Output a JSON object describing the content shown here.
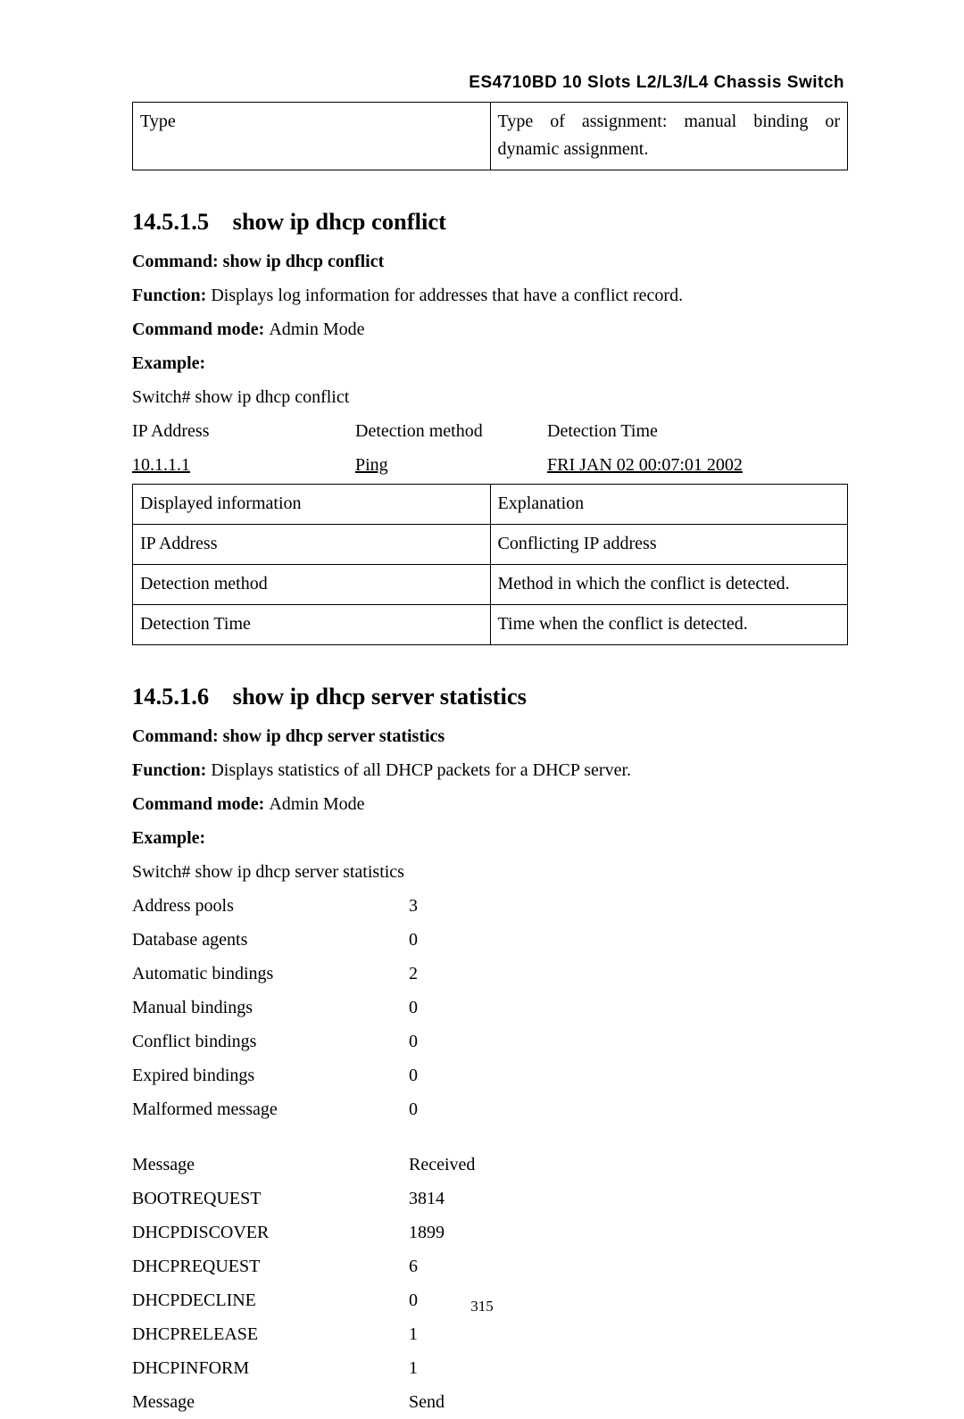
{
  "header": {
    "title": "ES4710BD 10 Slots L2/L3/L4 Chassis Switch"
  },
  "top_table": {
    "col_widths": [
      "50%",
      "50%"
    ],
    "row": {
      "left": "Type",
      "right": "Type of assignment: manual binding or dynamic assignment."
    }
  },
  "section1": {
    "number": "14.5.1.5",
    "title": "show ip dhcp conflict",
    "command_label": "Command: ",
    "command_text": "show ip dhcp conflict",
    "function_label": "Function: ",
    "function_text": "Displays log information for addresses that have a conflict record.",
    "mode_label": "Command mode: ",
    "mode_text": "Admin Mode",
    "example_label": "Example:",
    "shell": "Switch# show ip dhcp conflict",
    "columns": {
      "h1": "IP Address",
      "h2": "Detection method",
      "h3": "Detection Time"
    },
    "row": {
      "c1": "10.1.1.1",
      "c2": "Ping",
      "c3": "FRI JAN 02 00:07:01 2002"
    },
    "table2": {
      "col_widths": [
        "50%",
        "50%"
      ],
      "r1": {
        "l": "Displayed information",
        "r": "Explanation"
      },
      "r2": {
        "l": "IP Address",
        "r": "Conflicting IP address"
      },
      "r3": {
        "l": "Detection method",
        "r": "Method in which the conflict is detected."
      },
      "r4": {
        "l": "Detection Time",
        "r": "Time when the conflict is detected."
      }
    }
  },
  "section2": {
    "number": "14.5.1.6",
    "title": "show ip dhcp server statistics",
    "command_label": "Command: ",
    "command_text": "show ip dhcp server statistics",
    "function_label": "Function: ",
    "function_text": "Displays statistics of all DHCP packets for a DHCP server.",
    "mode_label": "Command mode: ",
    "mode_text": "Admin Mode",
    "example_label": "Example:",
    "shell": "Switch# show ip dhcp server statistics",
    "block1": [
      {
        "k": "Address pools",
        "v": "3"
      },
      {
        "k": "Database agents",
        "v": "0"
      },
      {
        "k": "Automatic bindings",
        "v": "2"
      },
      {
        "k": "Manual bindings",
        "v": "0"
      },
      {
        "k": "Conflict bindings",
        "v": "0"
      },
      {
        "k": "Expired bindings",
        "v": "0"
      },
      {
        "k": "Malformed message",
        "v": "0"
      }
    ],
    "block2_header": {
      "k": "Message",
      "v": "Received"
    },
    "block2": [
      {
        "k": "BOOTREQUEST",
        "v": "3814"
      },
      {
        "k": "DHCPDISCOVER",
        "v": "1899"
      },
      {
        "k": "DHCPREQUEST",
        "v": "6"
      },
      {
        "k": "DHCPDECLINE",
        "v": "0"
      },
      {
        "k": "DHCPRELEASE",
        "v": "1"
      },
      {
        "k": "DHCPINFORM",
        "v": "1"
      },
      {
        "k": "Message",
        "v": "Send"
      }
    ]
  },
  "page_number": "315"
}
